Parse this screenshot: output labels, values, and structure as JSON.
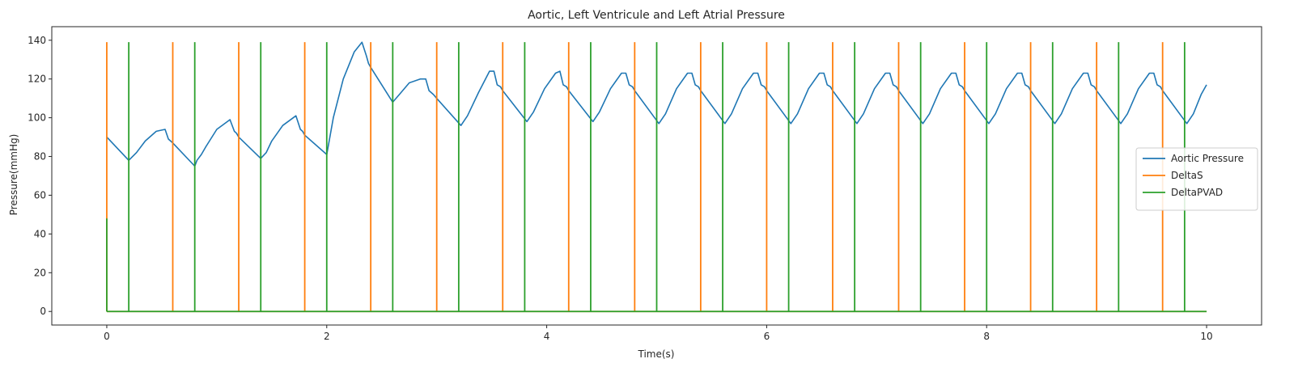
{
  "chart_data": {
    "type": "line",
    "title": "Aortic, Left Ventricule and Left Atrial Pressure",
    "xlabel": "Time(s)",
    "ylabel": "Pressure(mmHg)",
    "xlim": [
      -0.5,
      10.5
    ],
    "ylim": [
      -7,
      147
    ],
    "xticks": [
      0,
      2,
      4,
      6,
      8,
      10
    ],
    "yticks": [
      0,
      20,
      40,
      60,
      80,
      100,
      120,
      140
    ],
    "grid": false,
    "legend_position": "center-right",
    "series": [
      {
        "name": "Aortic Pressure",
        "color": "#1f77b4",
        "kind": "line",
        "x": [
          0,
          0.2,
          0.27,
          0.35,
          0.45,
          0.53,
          0.56,
          0.58,
          0.6,
          0.8,
          0.82,
          0.86,
          0.9,
          1.0,
          1.12,
          1.16,
          1.18,
          1.2,
          1.4,
          1.45,
          1.5,
          1.6,
          1.72,
          1.76,
          1.78,
          1.8,
          2.0,
          2.06,
          2.15,
          2.25,
          2.32,
          2.36,
          2.38,
          2.4,
          2.6,
          2.66,
          2.75,
          2.85,
          2.9,
          2.93,
          2.95,
          2.97,
          3.0,
          3.22,
          3.28,
          3.38,
          3.48,
          3.52,
          3.55,
          3.58,
          3.6,
          3.82,
          3.88,
          3.98,
          4.08,
          4.12,
          4.15,
          4.18,
          4.2,
          4.42,
          4.48,
          4.58,
          4.68,
          4.72,
          4.75,
          4.78,
          4.8,
          5.02,
          5.08,
          5.18,
          5.28,
          5.32,
          5.35,
          5.38,
          5.4,
          5.62,
          5.68,
          5.78,
          5.88,
          5.92,
          5.95,
          5.98,
          6.0,
          6.22,
          6.28,
          6.38,
          6.48,
          6.52,
          6.55,
          6.58,
          6.6,
          6.82,
          6.88,
          6.98,
          7.08,
          7.12,
          7.15,
          7.18,
          7.2,
          7.42,
          7.48,
          7.58,
          7.68,
          7.72,
          7.75,
          7.78,
          7.8,
          8.02,
          8.08,
          8.18,
          8.28,
          8.32,
          8.35,
          8.38,
          8.4,
          8.62,
          8.68,
          8.78,
          8.88,
          8.92,
          8.95,
          8.98,
          9.0,
          9.22,
          9.28,
          9.38,
          9.48,
          9.52,
          9.55,
          9.58,
          9.6,
          9.82,
          9.88,
          9.95,
          10.0
        ],
        "y": [
          90,
          78,
          82,
          88,
          93,
          94,
          89,
          88,
          87,
          75,
          78,
          81,
          85,
          94,
          99,
          93,
          92,
          90,
          79,
          82,
          88,
          96,
          101,
          94,
          93,
          91,
          81,
          100,
          120,
          134,
          139,
          132,
          128,
          126,
          108,
          112,
          118,
          120,
          120,
          114,
          113,
          112,
          110,
          96,
          101,
          113,
          124,
          124,
          117,
          116,
          114,
          98,
          103,
          115,
          123,
          124,
          117,
          116,
          114,
          98,
          103,
          115,
          123,
          123,
          117,
          116,
          114,
          97,
          102,
          115,
          123,
          123,
          117,
          116,
          114,
          97,
          102,
          115,
          123,
          123,
          117,
          116,
          114,
          97,
          102,
          115,
          123,
          123,
          117,
          116,
          114,
          97,
          102,
          115,
          123,
          123,
          117,
          116,
          114,
          97,
          102,
          115,
          123,
          123,
          117,
          116,
          114,
          97,
          102,
          115,
          123,
          123,
          117,
          116,
          114,
          97,
          102,
          115,
          123,
          123,
          117,
          116,
          114,
          97,
          102,
          115,
          123,
          123,
          117,
          116,
          114,
          97,
          102,
          112,
          117
        ]
      },
      {
        "name": "DeltaS",
        "color": "#ff7f0e",
        "kind": "impulse",
        "baseline": 0,
        "x_end": 10,
        "x": [
          0,
          0.6,
          1.2,
          1.8,
          2.4,
          3.0,
          3.6,
          4.2,
          4.8,
          5.4,
          6.0,
          6.6,
          7.2,
          7.8,
          8.4,
          9.0,
          9.6
        ],
        "y": [
          139,
          139,
          139,
          139,
          139,
          139,
          139,
          139,
          139,
          139,
          139,
          139,
          139,
          139,
          139,
          139,
          139
        ]
      },
      {
        "name": "DeltaPVAD",
        "color": "#2ca02c",
        "kind": "impulse",
        "baseline": 0,
        "x_end": 10,
        "x": [
          0,
          0.2,
          0.8,
          1.4,
          2.0,
          2.6,
          3.2,
          3.8,
          4.4,
          5.0,
          5.6,
          6.2,
          6.8,
          7.4,
          8.0,
          8.6,
          9.2,
          9.8
        ],
        "y": [
          48,
          139,
          139,
          139,
          139,
          139,
          139,
          139,
          139,
          139,
          139,
          139,
          139,
          139,
          139,
          139,
          139,
          139
        ]
      }
    ]
  }
}
